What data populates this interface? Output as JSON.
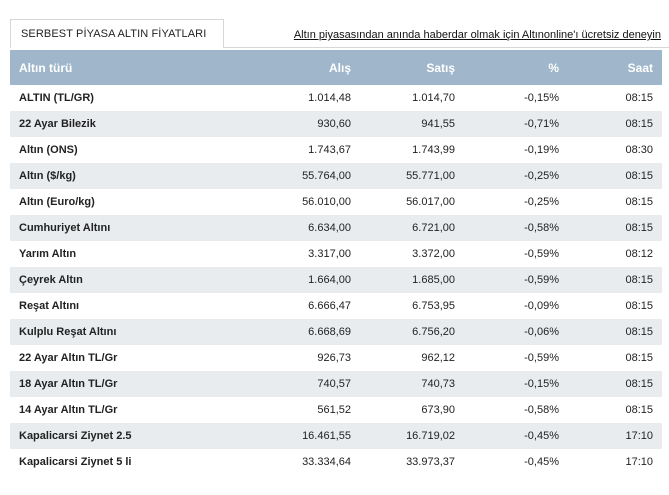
{
  "tab_title": "SERBEST PİYASA ALTIN FİYATLARI",
  "promo_link": "Altın piyasasından anında haberdar olmak için Altınonline'ı ücretsiz deneyin",
  "columns": [
    "Altın türü",
    "Alış",
    "Satış",
    "%",
    "Saat"
  ],
  "rows": [
    [
      "ALTIN (TL/GR)",
      "1.014,48",
      "1.014,70",
      "-0,15%",
      "08:15"
    ],
    [
      "22 Ayar Bilezik",
      "930,60",
      "941,55",
      "-0,71%",
      "08:15"
    ],
    [
      "Altın (ONS)",
      "1.743,67",
      "1.743,99",
      "-0,19%",
      "08:30"
    ],
    [
      "Altın ($/kg)",
      "55.764,00",
      "55.771,00",
      "-0,25%",
      "08:15"
    ],
    [
      "Altın (Euro/kg)",
      "56.010,00",
      "56.017,00",
      "-0,25%",
      "08:15"
    ],
    [
      "Cumhuriyet Altını",
      "6.634,00",
      "6.721,00",
      "-0,58%",
      "08:15"
    ],
    [
      "Yarım Altın",
      "3.317,00",
      "3.372,00",
      "-0,59%",
      "08:12"
    ],
    [
      "Çeyrek Altın",
      "1.664,00",
      "1.685,00",
      "-0,59%",
      "08:15"
    ],
    [
      "Reşat Altını",
      "6.666,47",
      "6.753,95",
      "-0,09%",
      "08:15"
    ],
    [
      "Kulplu Reşat Altını",
      "6.668,69",
      "6.756,20",
      "-0,06%",
      "08:15"
    ],
    [
      "22 Ayar Altın TL/Gr",
      "926,73",
      "962,12",
      "-0,59%",
      "08:15"
    ],
    [
      "18 Ayar Altın TL/Gr",
      "740,57",
      "740,73",
      "-0,15%",
      "08:15"
    ],
    [
      "14 Ayar Altın TL/Gr",
      "561,52",
      "673,90",
      "-0,58%",
      "08:15"
    ],
    [
      "Kapalicarsi Ziynet 2.5",
      "16.461,55",
      "16.719,02",
      "-0,45%",
      "17:10"
    ],
    [
      "Kapalicarsi Ziynet 5 li",
      "33.334,64",
      "33.973,37",
      "-0,45%",
      "17:10"
    ]
  ],
  "colors": {
    "header_bg": "#9fb6cb",
    "stripe": "#e8ecef",
    "border": "#d7d7d7"
  }
}
